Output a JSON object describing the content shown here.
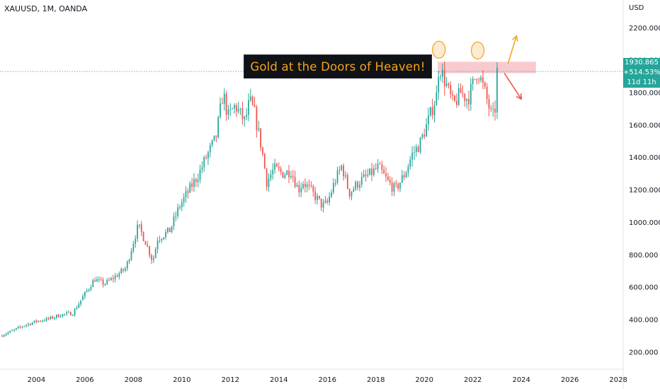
{
  "header": {
    "symbol": "XAUUSD, 1M, OANDA",
    "currency": "USD"
  },
  "annotation": {
    "text": "Gold at the Doors of Heaven!"
  },
  "price_tags": {
    "last_price": "1930.865",
    "change": "+514.53%",
    "countdown": "11d 11h"
  },
  "colors": {
    "up": "#26a69a",
    "down": "#ef5350",
    "annotation_text": "#f5a31a",
    "zone": "#f6b8bf",
    "marker": "#f5a623",
    "arrow_up": "#f5a623",
    "arrow_down": "#ef5350"
  },
  "chart_data": {
    "type": "candlestick",
    "x_tick_labels": [
      "2004",
      "2006",
      "2008",
      "2010",
      "2012",
      "2014",
      "2016",
      "2018",
      "2020",
      "2022",
      "2024",
      "2026",
      "2028"
    ],
    "y_tick_labels": [
      "2200.000",
      "2000.000",
      "1800.000",
      "1600.000",
      "1400.000",
      "1200.000",
      "1000.000",
      "800.000",
      "600.000",
      "400.000",
      "200.000"
    ],
    "ylim": [
      100,
      2250
    ],
    "xlim": [
      2002.5,
      2028.2
    ],
    "last_price": 1930.865,
    "resistance_zone": [
      1920,
      1990
    ],
    "path": [
      [
        2002.5,
        300
      ],
      [
        2003.0,
        330
      ],
      [
        2003.5,
        365
      ],
      [
        2004.0,
        390
      ],
      [
        2004.5,
        405
      ],
      [
        2005.0,
        430
      ],
      [
        2005.5,
        440
      ],
      [
        2006.0,
        560
      ],
      [
        2006.4,
        650
      ],
      [
        2006.8,
        620
      ],
      [
        2007.2,
        660
      ],
      [
        2007.7,
        720
      ],
      [
        2008.0,
        880
      ],
      [
        2008.2,
        980
      ],
      [
        2008.5,
        880
      ],
      [
        2008.8,
        760
      ],
      [
        2009.0,
        900
      ],
      [
        2009.5,
        950
      ],
      [
        2009.9,
        1100
      ],
      [
        2010.3,
        1200
      ],
      [
        2010.7,
        1300
      ],
      [
        2011.0,
        1400
      ],
      [
        2011.4,
        1520
      ],
      [
        2011.7,
        1800
      ],
      [
        2011.9,
        1650
      ],
      [
        2012.2,
        1720
      ],
      [
        2012.6,
        1620
      ],
      [
        2012.8,
        1750
      ],
      [
        2013.0,
        1670
      ],
      [
        2013.3,
        1450
      ],
      [
        2013.5,
        1250
      ],
      [
        2013.8,
        1330
      ],
      [
        2014.2,
        1300
      ],
      [
        2014.5,
        1320
      ],
      [
        2014.8,
        1200
      ],
      [
        2015.0,
        1250
      ],
      [
        2015.4,
        1180
      ],
      [
        2015.8,
        1100
      ],
      [
        2016.0,
        1120
      ],
      [
        2016.3,
        1250
      ],
      [
        2016.6,
        1350
      ],
      [
        2016.9,
        1180
      ],
      [
        2017.3,
        1250
      ],
      [
        2017.7,
        1290
      ],
      [
        2018.1,
        1340
      ],
      [
        2018.5,
        1250
      ],
      [
        2018.8,
        1200
      ],
      [
        2019.2,
        1300
      ],
      [
        2019.5,
        1420
      ],
      [
        2019.8,
        1480
      ],
      [
        2020.1,
        1600
      ],
      [
        2020.5,
        1780
      ],
      [
        2020.6,
        1970
      ],
      [
        2020.9,
        1850
      ],
      [
        2021.2,
        1720
      ],
      [
        2021.5,
        1800
      ],
      [
        2021.8,
        1760
      ],
      [
        2022.0,
        1850
      ],
      [
        2022.2,
        1940
      ],
      [
        2022.5,
        1800
      ],
      [
        2022.8,
        1640
      ],
      [
        2022.95,
        1720
      ],
      [
        2023.0,
        1930
      ]
    ],
    "circle_markers": [
      {
        "date": 2020.6,
        "price": 2065
      },
      {
        "date": 2022.2,
        "price": 2060
      }
    ],
    "projection_arrows": [
      {
        "direction": "up",
        "from": [
          2023.45,
          1980
        ],
        "to": [
          2023.8,
          2150
        ]
      },
      {
        "direction": "down",
        "from": [
          2023.3,
          1920
        ],
        "to": [
          2024.0,
          1760
        ]
      }
    ]
  }
}
